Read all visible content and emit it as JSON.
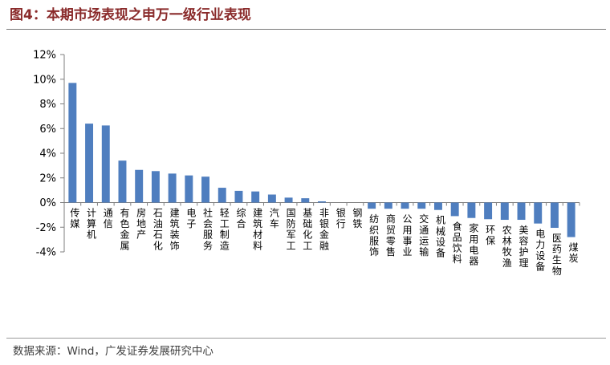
{
  "figure": {
    "title": "图4：本期市场表现之申万一级行业表现",
    "source": "数据来源：Wind，广发证券发展研究中心"
  },
  "chart_data": {
    "type": "bar",
    "title": "",
    "xlabel": "",
    "ylabel": "",
    "ylim": [
      -4,
      12
    ],
    "yticks": [
      -4,
      -2,
      0,
      2,
      4,
      6,
      8,
      10,
      12
    ],
    "ytick_labels": [
      "-4%",
      "-2%",
      "0%",
      "2%",
      "4%",
      "6%",
      "8%",
      "10%",
      "12%"
    ],
    "grid": false,
    "bar_color": "#4f7ebf",
    "categories": [
      "传媒",
      "计算机",
      "通信",
      "有色金属",
      "房地产",
      "石油石化",
      "建筑装饰",
      "电子",
      "社会服务",
      "轻工制造",
      "综合",
      "建筑材料",
      "汽车",
      "国防军工",
      "基础化工",
      "非银金融",
      "银行",
      "钢铁",
      "纺织服饰",
      "商贸零售",
      "公用事业",
      "交通运输",
      "机械设备",
      "食品饮料",
      "家用电器",
      "环保",
      "农林牧渔",
      "美容护理",
      "电力设备",
      "医药生物",
      "煤炭"
    ],
    "values": [
      9.7,
      6.4,
      6.25,
      3.4,
      2.65,
      2.55,
      2.35,
      2.2,
      2.1,
      1.2,
      0.95,
      0.9,
      0.65,
      0.4,
      0.35,
      0.1,
      0.0,
      0.0,
      -0.5,
      -0.5,
      -0.5,
      -0.5,
      -0.6,
      -1.1,
      -1.25,
      -1.35,
      -1.4,
      -1.4,
      -1.7,
      -2.05,
      -2.8
    ]
  }
}
